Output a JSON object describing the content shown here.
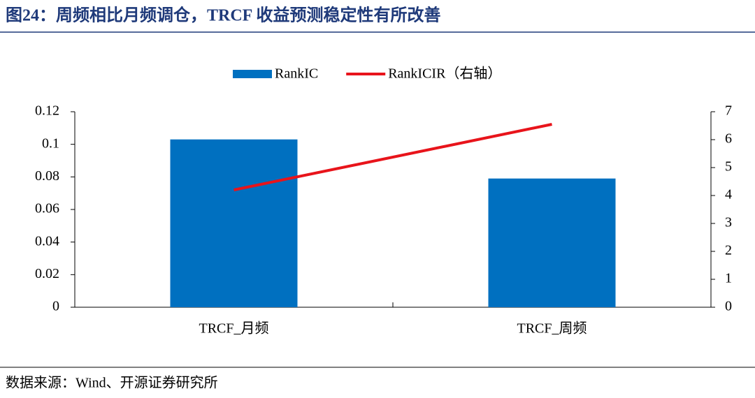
{
  "header": {
    "title": "图24：周频相比月频调仓，TRCF 收益预测稳定性有所改善"
  },
  "chart_data": {
    "type": "bar",
    "categories": [
      "TRCF_月频",
      "TRCF_周频"
    ],
    "series": [
      {
        "name": "RankIC",
        "type": "bar",
        "color": "#0070c0",
        "values": [
          0.103,
          0.079
        ]
      },
      {
        "name": "RankICIR（右轴）",
        "type": "line",
        "axis": "y2",
        "color": "#e8141b",
        "values": [
          4.2,
          6.55
        ]
      }
    ],
    "ylim": [
      0,
      0.12
    ],
    "yticks": [
      0,
      0.02,
      0.04,
      0.06,
      0.08,
      0.1,
      0.12
    ],
    "y2lim": [
      0,
      7
    ],
    "y2ticks": [
      0,
      1,
      2,
      3,
      4,
      5,
      6,
      7
    ],
    "legend": "top",
    "grid": false
  },
  "footer": {
    "source": "数据来源：Wind、开源证券研究所"
  }
}
